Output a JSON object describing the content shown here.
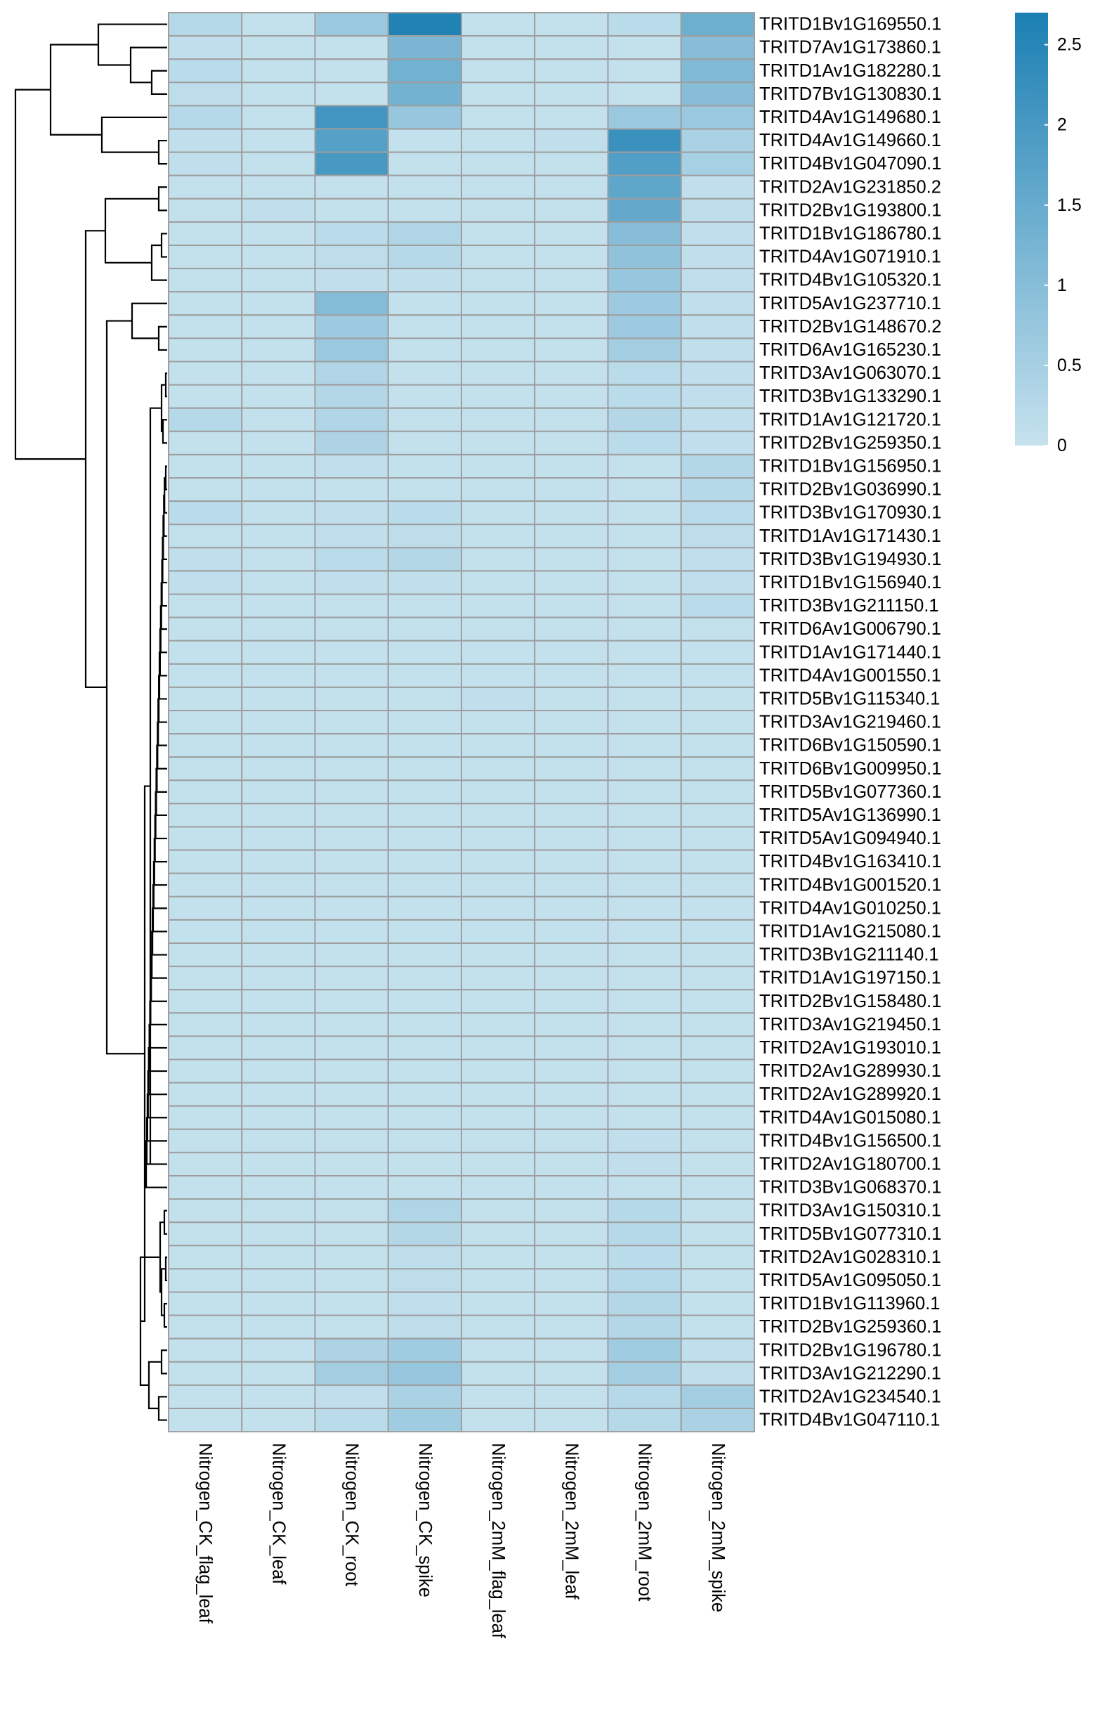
{
  "chart_data": {
    "type": "heatmap",
    "title": "",
    "columns": [
      "Nitrogen_CK_flag_leaf",
      "Nitrogen_CK_leaf",
      "Nitrogen_CK_root",
      "Nitrogen_CK_spike",
      "Nitrogen_2mM_flag_leaf",
      "Nitrogen_2mM_leaf",
      "Nitrogen_2mM_root",
      "Nitrogen_2mM_spike"
    ],
    "rows": [
      "TRITD1Bv1G169550.1",
      "TRITD7Av1G173860.1",
      "TRITD1Av1G182280.1",
      "TRITD7Bv1G130830.1",
      "TRITD4Av1G149680.1",
      "TRITD4Av1G149660.1",
      "TRITD4Bv1G047090.1",
      "TRITD2Av1G231850.2",
      "TRITD2Bv1G193800.1",
      "TRITD1Bv1G186780.1",
      "TRITD4Av1G071910.1",
      "TRITD4Bv1G105320.1",
      "TRITD5Av1G237710.1",
      "TRITD2Bv1G148670.2",
      "TRITD6Av1G165230.1",
      "TRITD3Av1G063070.1",
      "TRITD3Bv1G133290.1",
      "TRITD1Av1G121720.1",
      "TRITD2Bv1G259350.1",
      "TRITD1Bv1G156950.1",
      "TRITD2Bv1G036990.1",
      "TRITD3Bv1G170930.1",
      "TRITD1Av1G171430.1",
      "TRITD3Bv1G194930.1",
      "TRITD1Bv1G156940.1",
      "TRITD3Bv1G211150.1",
      "TRITD6Av1G006790.1",
      "TRITD1Av1G171440.1",
      "TRITD4Av1G001550.1",
      "TRITD5Bv1G115340.1",
      "TRITD3Av1G219460.1",
      "TRITD6Bv1G150590.1",
      "TRITD6Bv1G009950.1",
      "TRITD5Bv1G077360.1",
      "TRITD5Av1G136990.1",
      "TRITD5Av1G094940.1",
      "TRITD4Bv1G163410.1",
      "TRITD4Bv1G001520.1",
      "TRITD4Av1G010250.1",
      "TRITD1Av1G215080.1",
      "TRITD3Bv1G211140.1",
      "TRITD1Av1G197150.1",
      "TRITD2Bv1G158480.1",
      "TRITD3Av1G219450.1",
      "TRITD2Av1G193010.1",
      "TRITD2Av1G289930.1",
      "TRITD2Av1G289920.1",
      "TRITD4Av1G015080.1",
      "TRITD4Bv1G156500.1",
      "TRITD2Av1G180700.1",
      "TRITD3Bv1G068370.1",
      "TRITD3Av1G150310.1",
      "TRITD5Bv1G077310.1",
      "TRITD2Av1G028310.1",
      "TRITD5Av1G095050.1",
      "TRITD1Bv1G113960.1",
      "TRITD2Bv1G259360.1",
      "TRITD2Bv1G196780.1",
      "TRITD3Av1G212290.1",
      "TRITD2Av1G234540.1",
      "TRITD4Bv1G047110.1"
    ],
    "values": [
      [
        0.25,
        0.05,
        0.7,
        2.6,
        0.05,
        0.05,
        0.2,
        1.4
      ],
      [
        0.1,
        0.05,
        0.05,
        1.2,
        0.05,
        0.05,
        0.05,
        1.0
      ],
      [
        0.2,
        0.05,
        0.05,
        1.35,
        0.05,
        0.05,
        0.05,
        1.1
      ],
      [
        0.15,
        0.05,
        0.05,
        1.3,
        0.05,
        0.05,
        0.05,
        1.0
      ],
      [
        0.25,
        0.05,
        2.1,
        0.75,
        0.05,
        0.05,
        0.7,
        0.7
      ],
      [
        0.1,
        0.05,
        1.8,
        0.05,
        0.05,
        0.1,
        2.2,
        0.45
      ],
      [
        0.1,
        0.05,
        2.0,
        0.05,
        0.05,
        0.05,
        1.85,
        0.5
      ],
      [
        0.05,
        0.05,
        0.05,
        0.05,
        0.05,
        0.05,
        1.65,
        0.1
      ],
      [
        0.05,
        0.1,
        0.05,
        0.05,
        0.05,
        0.05,
        1.55,
        0.15
      ],
      [
        0.05,
        0.05,
        0.2,
        0.35,
        0.05,
        0.05,
        1.0,
        0.1
      ],
      [
        0.05,
        0.05,
        0.15,
        0.25,
        0.05,
        0.05,
        0.85,
        0.1
      ],
      [
        0.05,
        0.05,
        0.1,
        0.1,
        0.05,
        0.05,
        0.75,
        0.1
      ],
      [
        0.05,
        0.05,
        1.05,
        0.05,
        0.05,
        0.05,
        0.65,
        0.1
      ],
      [
        0.05,
        0.05,
        0.65,
        0.05,
        0.05,
        0.05,
        0.65,
        0.1
      ],
      [
        0.05,
        0.05,
        0.7,
        0.05,
        0.05,
        0.05,
        0.55,
        0.1
      ],
      [
        0.05,
        0.05,
        0.35,
        0.05,
        0.05,
        0.05,
        0.2,
        0.1
      ],
      [
        0.05,
        0.05,
        0.3,
        0.05,
        0.05,
        0.05,
        0.2,
        0.1
      ],
      [
        0.25,
        0.05,
        0.35,
        0.05,
        0.05,
        0.05,
        0.3,
        0.1
      ],
      [
        0.05,
        0.05,
        0.4,
        0.05,
        0.05,
        0.05,
        0.2,
        0.1
      ],
      [
        0.05,
        0.05,
        0.1,
        0.05,
        0.05,
        0.05,
        0.05,
        0.3
      ],
      [
        0.05,
        0.05,
        0.05,
        0.05,
        0.05,
        0.05,
        0.05,
        0.25
      ],
      [
        0.2,
        0.05,
        0.1,
        0.2,
        0.05,
        0.05,
        0.05,
        0.2
      ],
      [
        0.05,
        0.05,
        0.1,
        0.15,
        0.05,
        0.05,
        0.05,
        0.15
      ],
      [
        0.1,
        0.05,
        0.2,
        0.3,
        0.05,
        0.05,
        0.05,
        0.1
      ],
      [
        0.1,
        0.05,
        0.1,
        0.1,
        0.05,
        0.05,
        0.05,
        0.1
      ],
      [
        0.05,
        0.05,
        0.05,
        0.05,
        0.05,
        0.05,
        0.05,
        0.2
      ],
      [
        0.05,
        0.05,
        0.05,
        0.05,
        0.05,
        0.05,
        0.05,
        0.05
      ],
      [
        0.05,
        0.05,
        0.05,
        0.05,
        0.05,
        0.05,
        0.05,
        0.05
      ],
      [
        0.05,
        0.05,
        0.05,
        0.05,
        0.05,
        0.05,
        0.05,
        0.05
      ],
      [
        0.05,
        0.05,
        0.05,
        0.05,
        0.1,
        0.05,
        0.05,
        0.05
      ],
      [
        0.05,
        0.05,
        0.05,
        0.05,
        0.05,
        0.05,
        0.05,
        0.05
      ],
      [
        0.05,
        0.05,
        0.05,
        0.05,
        0.05,
        0.05,
        0.05,
        0.05
      ],
      [
        0.05,
        0.05,
        0.05,
        0.05,
        0.05,
        0.05,
        0.05,
        0.05
      ],
      [
        0.05,
        0.05,
        0.05,
        0.05,
        0.05,
        0.05,
        0.05,
        0.05
      ],
      [
        0.05,
        0.05,
        0.05,
        0.05,
        0.05,
        0.05,
        0.05,
        0.05
      ],
      [
        0.05,
        0.05,
        0.05,
        0.05,
        0.05,
        0.05,
        0.05,
        0.05
      ],
      [
        0.05,
        0.05,
        0.05,
        0.05,
        0.05,
        0.05,
        0.05,
        0.05
      ],
      [
        0.05,
        0.05,
        0.05,
        0.05,
        0.05,
        0.05,
        0.05,
        0.05
      ],
      [
        0.05,
        0.05,
        0.05,
        0.05,
        0.05,
        0.05,
        0.05,
        0.05
      ],
      [
        0.05,
        0.05,
        0.05,
        0.05,
        0.05,
        0.05,
        0.05,
        0.05
      ],
      [
        0.05,
        0.05,
        0.05,
        0.05,
        0.05,
        0.05,
        0.05,
        0.05
      ],
      [
        0.05,
        0.05,
        0.05,
        0.05,
        0.05,
        0.05,
        0.05,
        0.05
      ],
      [
        0.05,
        0.05,
        0.05,
        0.05,
        0.05,
        0.05,
        0.05,
        0.05
      ],
      [
        0.05,
        0.05,
        0.05,
        0.05,
        0.05,
        0.05,
        0.05,
        0.05
      ],
      [
        0.05,
        0.05,
        0.05,
        0.05,
        0.05,
        0.05,
        0.05,
        0.05
      ],
      [
        0.05,
        0.05,
        0.05,
        0.05,
        0.05,
        0.05,
        0.05,
        0.05
      ],
      [
        0.05,
        0.05,
        0.05,
        0.05,
        0.05,
        0.05,
        0.05,
        0.05
      ],
      [
        0.05,
        0.05,
        0.05,
        0.05,
        0.05,
        0.05,
        0.05,
        0.05
      ],
      [
        0.05,
        0.05,
        0.05,
        0.05,
        0.05,
        0.05,
        0.1,
        0.05
      ],
      [
        0.05,
        0.05,
        0.05,
        0.05,
        0.05,
        0.05,
        0.1,
        0.05
      ],
      [
        0.05,
        0.05,
        0.05,
        0.05,
        0.05,
        0.05,
        0.05,
        0.05
      ],
      [
        0.05,
        0.05,
        0.05,
        0.35,
        0.05,
        0.05,
        0.25,
        0.05
      ],
      [
        0.05,
        0.05,
        0.05,
        0.3,
        0.05,
        0.05,
        0.25,
        0.05
      ],
      [
        0.05,
        0.05,
        0.05,
        0.15,
        0.05,
        0.05,
        0.2,
        0.05
      ],
      [
        0.05,
        0.05,
        0.05,
        0.15,
        0.05,
        0.05,
        0.25,
        0.05
      ],
      [
        0.05,
        0.05,
        0.05,
        0.1,
        0.05,
        0.05,
        0.3,
        0.05
      ],
      [
        0.05,
        0.05,
        0.05,
        0.15,
        0.05,
        0.05,
        0.3,
        0.05
      ],
      [
        0.05,
        0.05,
        0.4,
        0.6,
        0.05,
        0.05,
        0.6,
        0.1
      ],
      [
        0.05,
        0.05,
        0.55,
        0.75,
        0.05,
        0.05,
        0.55,
        0.1
      ],
      [
        0.05,
        0.05,
        0.1,
        0.45,
        0.05,
        0.05,
        0.25,
        0.55
      ],
      [
        0.05,
        0.05,
        0.2,
        0.6,
        0.05,
        0.05,
        0.25,
        0.45
      ]
    ],
    "color_scale": {
      "low": "#c6e2ee",
      "high": "#1b7fb3",
      "cell_border": "#9e9e9e"
    },
    "legend": {
      "ticks": [
        0,
        0.5,
        1,
        1.5,
        2,
        2.5
      ],
      "ticklabels": [
        "0",
        "0.5",
        "1",
        "1.5",
        "2",
        "2.5"
      ],
      "range": [
        0,
        2.7
      ],
      "placement": "top-right"
    },
    "row_dendrogram": true,
    "grid": false
  }
}
